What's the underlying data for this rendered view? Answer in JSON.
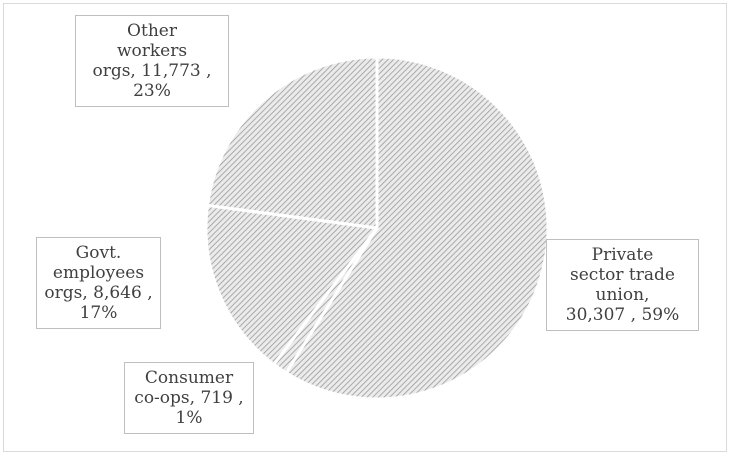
{
  "chart_data": {
    "type": "pie",
    "title": "",
    "colors": {
      "fill": "#ebebeb",
      "hatch": "#9a9a9a",
      "separator": "#ffffff",
      "label_border": "#bfbfbf",
      "text": "#404040"
    },
    "slices": [
      {
        "name": "Private sector trade union",
        "value": 30307,
        "percent": 59,
        "label_lines": [
          "Private",
          "sector trade",
          "union,",
          "30,307 , 59%"
        ]
      },
      {
        "name": "Consumer co-ops",
        "value": 719,
        "percent": 1,
        "label_lines": [
          "Consumer",
          "co-ops, 719 ,",
          "1%"
        ]
      },
      {
        "name": "Govt. employees orgs",
        "value": 8646,
        "percent": 17,
        "label_lines": [
          "Govt.",
          "employees",
          "orgs, 8,646 ,",
          "17%"
        ]
      },
      {
        "name": "Other workers orgs",
        "value": 11773,
        "percent": 23,
        "label_lines": [
          "Other",
          "workers",
          "orgs, 11,773 ,",
          "23%"
        ]
      }
    ]
  }
}
